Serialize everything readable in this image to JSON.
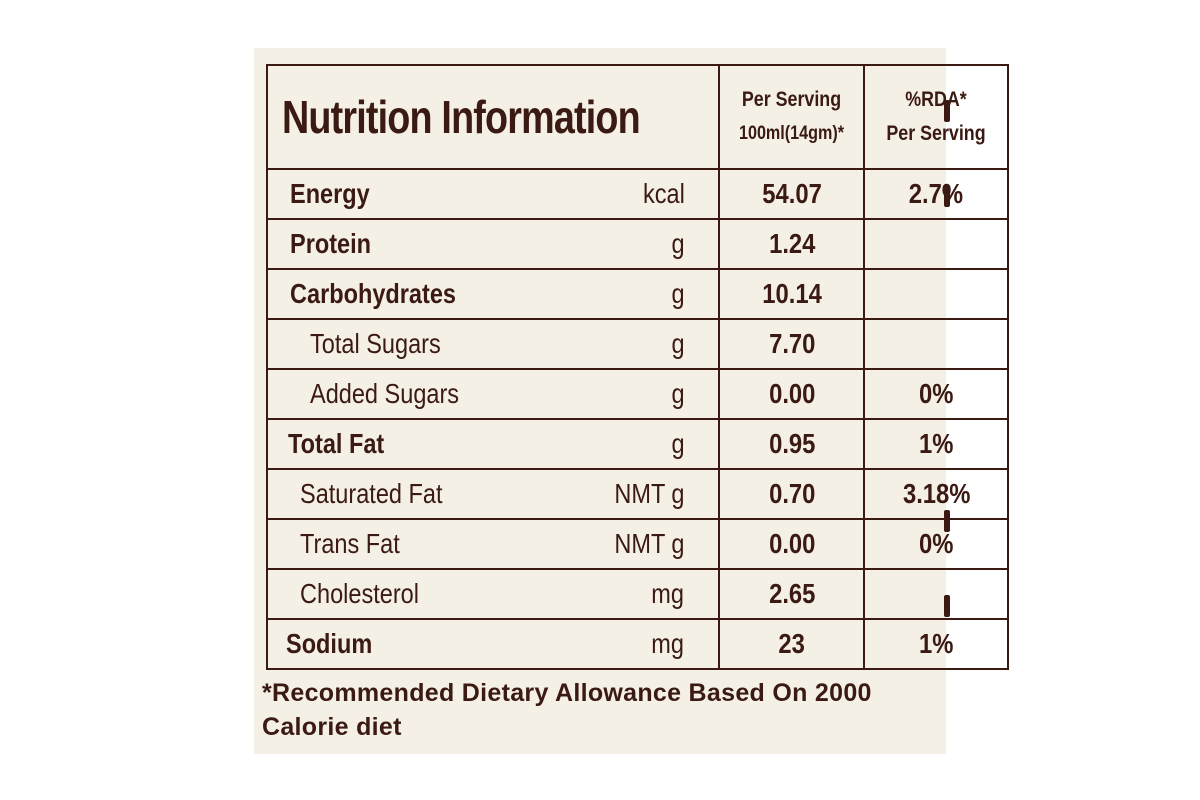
{
  "table": {
    "title": "Nutrition Information",
    "per_serving_header": [
      "Per Serving",
      "100ml(14gm)*"
    ],
    "rda_header": [
      "%RDA*",
      "Per Serving"
    ],
    "rows": [
      {
        "name": "Energy",
        "unit": "kcal",
        "value": "54.07",
        "rda": "2.7%"
      },
      {
        "name": "Protein",
        "unit": "g",
        "value": "1.24",
        "rda": ""
      },
      {
        "name": "Carbohydrates",
        "unit": "g",
        "value": "10.14",
        "rda": ""
      },
      {
        "name": "Total Sugars",
        "unit": "g",
        "value": "7.70",
        "rda": ""
      },
      {
        "name": "Added Sugars",
        "unit": "g",
        "value": "0.00",
        "rda": "0%"
      },
      {
        "name": "Total Fat",
        "unit": "g",
        "value": "0.95",
        "rda": "1%"
      },
      {
        "name": "Saturated Fat",
        "unit": "NMT g",
        "value": "0.70",
        "rda": "3.18%"
      },
      {
        "name": "Trans Fat",
        "unit": "NMT g",
        "value": "0.00",
        "rda": "0%"
      },
      {
        "name": "Cholesterol",
        "unit": "mg",
        "value": "2.65",
        "rda": ""
      },
      {
        "name": "Sodium",
        "unit": "mg",
        "value": "23",
        "rda": "1%"
      }
    ]
  },
  "footnote": "*Recommended Dietary Allowance Based On 2000 Calorie diet",
  "colors": {
    "ink": "#3a1a12",
    "paper": "#f5f0e6",
    "background": "#ffffff"
  }
}
